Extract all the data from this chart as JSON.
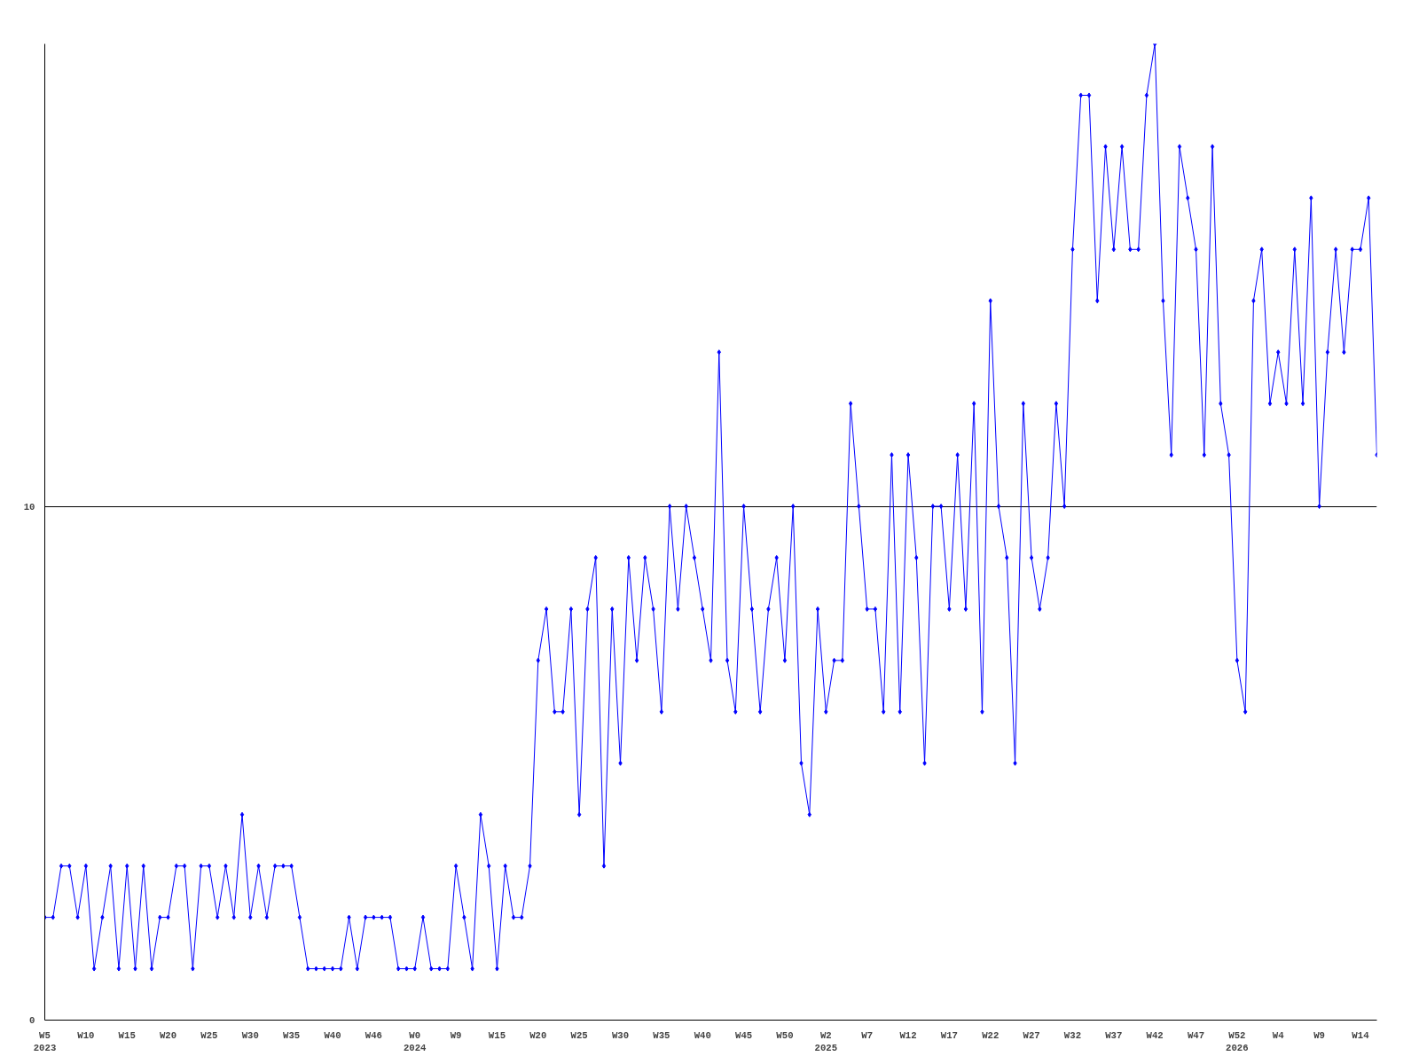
{
  "chart_data": {
    "type": "line",
    "categories": [
      "W5\n2023",
      null,
      null,
      null,
      null,
      "W10",
      null,
      null,
      null,
      null,
      "W15",
      null,
      null,
      null,
      null,
      "W20",
      null,
      null,
      null,
      null,
      "W25",
      null,
      null,
      null,
      null,
      "W30",
      null,
      null,
      null,
      null,
      "W35",
      null,
      null,
      null,
      null,
      "W40",
      null,
      null,
      null,
      null,
      "W46",
      null,
      null,
      null,
      null,
      "W0\n2024",
      null,
      null,
      null,
      null,
      "W9",
      null,
      null,
      null,
      null,
      "W15",
      null,
      null,
      null,
      null,
      "W20",
      null,
      null,
      null,
      null,
      "W25",
      null,
      null,
      null,
      null,
      "W30",
      null,
      null,
      null,
      null,
      "W35",
      null,
      null,
      null,
      null,
      "W40",
      null,
      null,
      null,
      null,
      "W45",
      null,
      null,
      null,
      null,
      "W50",
      null,
      null,
      null,
      null,
      "W2\n2025",
      null,
      null,
      null,
      null,
      "W7",
      null,
      null,
      null,
      null,
      "W12",
      null,
      null,
      null,
      null,
      "W17",
      null,
      null,
      null,
      null,
      "W22",
      null,
      null,
      null,
      null,
      "W27",
      null,
      null,
      null,
      null,
      "W32",
      null,
      null,
      null,
      null,
      "W37",
      null,
      null,
      null,
      null,
      "W42",
      null,
      null,
      null,
      null,
      "W47",
      null,
      null,
      null,
      null,
      "W52\n2026",
      null,
      null,
      null,
      null,
      "W4",
      null,
      null,
      null,
      null,
      "W9",
      null,
      null,
      null,
      null,
      "W14",
      null,
      null
    ],
    "series": [
      {
        "color": "#0000ff",
        "values": [
          2,
          2,
          3,
          3,
          2,
          3,
          1,
          2,
          3,
          1,
          3,
          1,
          3,
          1,
          2,
          2,
          3,
          3,
          1,
          3,
          3,
          2,
          3,
          2,
          4,
          2,
          3,
          2,
          3,
          3,
          3,
          2,
          1,
          1,
          1,
          1,
          1,
          2,
          1,
          2,
          2,
          2,
          2,
          1,
          1,
          1,
          2,
          1,
          1,
          1,
          3,
          2,
          1,
          4,
          3,
          1,
          3,
          2,
          2,
          3,
          7,
          8,
          6,
          6,
          8,
          4,
          8,
          9,
          3,
          8,
          5,
          9,
          7,
          9,
          8,
          6,
          10,
          8,
          10,
          9,
          8,
          7,
          13,
          7,
          6,
          10,
          8,
          6,
          8,
          9,
          7,
          10,
          5,
          4,
          8,
          6,
          7,
          7,
          12,
          10,
          8,
          8,
          6,
          11,
          6,
          11,
          9,
          5,
          10,
          10,
          8,
          11,
          8,
          12,
          6,
          14,
          10,
          9,
          5,
          12,
          9,
          8,
          9,
          12,
          10,
          15,
          18,
          18,
          14,
          17,
          15,
          17,
          15,
          15,
          18,
          19,
          14,
          11,
          17,
          16,
          15,
          11,
          17,
          12,
          11,
          7,
          6,
          14,
          15,
          12,
          13,
          12,
          15,
          12,
          16,
          10,
          13,
          15,
          13,
          15,
          15,
          16,
          11
        ]
      }
    ],
    "ylim": [
      0,
      19
    ],
    "yticks": [
      0,
      10
    ],
    "grid": "y",
    "marker": "diamond",
    "line_style": "solid"
  }
}
